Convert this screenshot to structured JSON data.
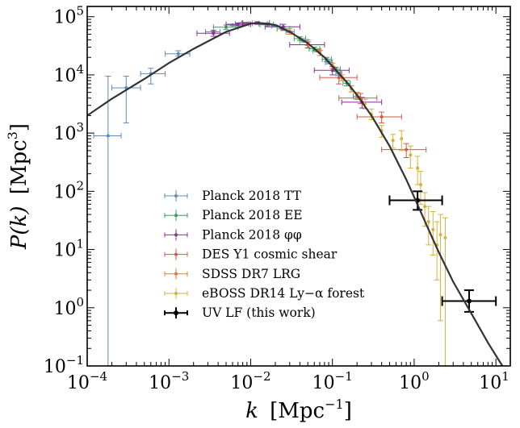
{
  "chart_data": {
    "type": "scatter",
    "title": "",
    "xlabel_main": "k",
    "xlabel_unit": "[Mpc",
    "xlabel_exp": "−1",
    "xlabel_close": "]",
    "ylabel_main": "P(k)",
    "ylabel_unit": "[Mpc",
    "ylabel_exp": "3",
    "ylabel_close": "]",
    "xscale": "log",
    "yscale": "log",
    "xlim": [
      0.0001,
      15
    ],
    "ylim": [
      0.1,
      150000
    ],
    "legend_position": "lower-left",
    "x_ticks": [
      {
        "value": 0.0001,
        "base": "10",
        "exp": "−4"
      },
      {
        "value": 0.001,
        "base": "10",
        "exp": "−3"
      },
      {
        "value": 0.01,
        "base": "10",
        "exp": "−2"
      },
      {
        "value": 0.1,
        "base": "10",
        "exp": "−1"
      },
      {
        "value": 1,
        "base": "10",
        "exp": "0"
      },
      {
        "value": 10,
        "base": "10",
        "exp": "1"
      }
    ],
    "y_ticks": [
      {
        "value": 0.1,
        "base": "10",
        "exp": "−1"
      },
      {
        "value": 1,
        "base": "10",
        "exp": "0"
      },
      {
        "value": 10,
        "base": "10",
        "exp": "1"
      },
      {
        "value": 100,
        "base": "10",
        "exp": "2"
      },
      {
        "value": 1000,
        "base": "10",
        "exp": "3"
      },
      {
        "value": 10000,
        "base": "10",
        "exp": "4"
      },
      {
        "value": 100000,
        "base": "10",
        "exp": "5"
      }
    ],
    "model_curve": {
      "color": "#333333",
      "points": [
        [
          0.0001,
          2000
        ],
        [
          0.0002,
          3900
        ],
        [
          0.0005,
          8500
        ],
        [
          0.001,
          16000
        ],
        [
          0.002,
          28000
        ],
        [
          0.005,
          55000
        ],
        [
          0.01,
          76000
        ],
        [
          0.0125,
          78000
        ],
        [
          0.02,
          72000
        ],
        [
          0.03,
          55000
        ],
        [
          0.05,
          35000
        ],
        [
          0.08,
          20000
        ],
        [
          0.1,
          14000
        ],
        [
          0.15,
          7500
        ],
        [
          0.2,
          4500
        ],
        [
          0.3,
          2000
        ],
        [
          0.5,
          600
        ],
        [
          0.8,
          160
        ],
        [
          1,
          80
        ],
        [
          1.5,
          22
        ],
        [
          2,
          9
        ],
        [
          3,
          2.8
        ],
        [
          5,
          0.8
        ],
        [
          8,
          0.25
        ],
        [
          12,
          0.1
        ]
      ]
    },
    "series": [
      {
        "name": "Planck 2018 TT",
        "color": "#5b8db8",
        "points": [
          {
            "x": 0.00018,
            "y": 900,
            "xlo": 0.00012,
            "xhi": 0.00026,
            "ylo": 0.1,
            "yhi": 9500
          },
          {
            "x": 0.0003,
            "y": 6000,
            "xlo": 0.0002,
            "xhi": 0.00045,
            "ylo": 1500,
            "yhi": 9500
          },
          {
            "x": 0.0006,
            "y": 10500,
            "xlo": 0.00045,
            "xhi": 0.0009,
            "ylo": 7000,
            "yhi": 13000
          },
          {
            "x": 0.0013,
            "y": 23000,
            "xlo": 0.0009,
            "xhi": 0.0018,
            "ylo": 21000,
            "yhi": 26000
          },
          {
            "x": 0.0035,
            "y": 55000,
            "xlo": 0.0028,
            "xhi": 0.0042,
            "ylo": 52000,
            "yhi": 58000
          },
          {
            "x": 0.006,
            "y": 72000,
            "xlo": 0.005,
            "xhi": 0.0072,
            "ylo": 70000,
            "yhi": 74000
          },
          {
            "x": 0.009,
            "y": 77000,
            "xlo": 0.0078,
            "xhi": 0.0105,
            "ylo": 75000,
            "yhi": 79000
          },
          {
            "x": 0.014,
            "y": 76000,
            "xlo": 0.0125,
            "xhi": 0.016,
            "ylo": 74000,
            "yhi": 78000
          },
          {
            "x": 0.02,
            "y": 70000,
            "xlo": 0.018,
            "xhi": 0.023,
            "ylo": 68000,
            "yhi": 72000
          },
          {
            "x": 0.03,
            "y": 55000,
            "xlo": 0.027,
            "xhi": 0.034,
            "ylo": 53000,
            "yhi": 57000
          },
          {
            "x": 0.045,
            "y": 38000,
            "xlo": 0.04,
            "xhi": 0.05,
            "ylo": 36500,
            "yhi": 39500
          },
          {
            "x": 0.065,
            "y": 26000,
            "xlo": 0.058,
            "xhi": 0.072,
            "ylo": 25000,
            "yhi": 27000
          },
          {
            "x": 0.09,
            "y": 16500,
            "xlo": 0.082,
            "xhi": 0.1,
            "ylo": 15500,
            "yhi": 17500
          },
          {
            "x": 0.12,
            "y": 10500,
            "xlo": 0.11,
            "xhi": 0.13,
            "ylo": 9800,
            "yhi": 11200
          }
        ]
      },
      {
        "name": "Planck 2018 EE",
        "color": "#3f9a5a",
        "points": [
          {
            "x": 0.005,
            "y": 66000,
            "xlo": 0.0035,
            "xhi": 0.007,
            "ylo": 60000,
            "yhi": 72000
          },
          {
            "x": 0.008,
            "y": 75000,
            "xlo": 0.0065,
            "xhi": 0.0095,
            "ylo": 70000,
            "yhi": 80000
          },
          {
            "x": 0.016,
            "y": 73000,
            "xlo": 0.013,
            "xhi": 0.019,
            "ylo": 68000,
            "yhi": 78000
          },
          {
            "x": 0.025,
            "y": 62000,
            "xlo": 0.021,
            "xhi": 0.03,
            "ylo": 58000,
            "yhi": 66000
          },
          {
            "x": 0.04,
            "y": 42000,
            "xlo": 0.034,
            "xhi": 0.047,
            "ylo": 39000,
            "yhi": 45000
          },
          {
            "x": 0.06,
            "y": 28000,
            "xlo": 0.052,
            "xhi": 0.07,
            "ylo": 26000,
            "yhi": 30000
          },
          {
            "x": 0.085,
            "y": 18500,
            "xlo": 0.075,
            "xhi": 0.097,
            "ylo": 17000,
            "yhi": 20000
          },
          {
            "x": 0.11,
            "y": 12500,
            "xlo": 0.1,
            "xhi": 0.125,
            "ylo": 11500,
            "yhi": 13500
          },
          {
            "x": 0.15,
            "y": 7200,
            "xlo": 0.135,
            "xhi": 0.165,
            "ylo": 6500,
            "yhi": 8000
          },
          {
            "x": 0.2,
            "y": 4300,
            "xlo": 0.18,
            "xhi": 0.22,
            "ylo": 3800,
            "yhi": 4800
          }
        ]
      },
      {
        "name": "Planck 2018 φφ",
        "color": "#8b2f9a",
        "points": [
          {
            "x": 0.0035,
            "y": 52000,
            "xlo": 0.0022,
            "xhi": 0.0055,
            "ylo": 46000,
            "yhi": 58000
          },
          {
            "x": 0.007,
            "y": 74000,
            "xlo": 0.005,
            "xhi": 0.01,
            "ylo": 70000,
            "yhi": 78000
          },
          {
            "x": 0.012,
            "y": 78000,
            "xlo": 0.008,
            "xhi": 0.017,
            "ylo": 74000,
            "yhi": 82000
          },
          {
            "x": 0.025,
            "y": 67000,
            "xlo": 0.015,
            "xhi": 0.04,
            "ylo": 60000,
            "yhi": 74000
          },
          {
            "x": 0.05,
            "y": 33000,
            "xlo": 0.03,
            "xhi": 0.08,
            "ylo": 29000,
            "yhi": 37000
          },
          {
            "x": 0.1,
            "y": 12000,
            "xlo": 0.06,
            "xhi": 0.16,
            "ylo": 10000,
            "yhi": 14000
          },
          {
            "x": 0.23,
            "y": 3400,
            "xlo": 0.13,
            "xhi": 0.4,
            "ylo": 2700,
            "yhi": 4100
          }
        ]
      },
      {
        "name": "DES Y1 cosmic shear",
        "color": "#d1584a",
        "points": [
          {
            "x": 0.12,
            "y": 9000,
            "xlo": 0.07,
            "xhi": 0.2,
            "ylo": 7000,
            "yhi": 11000
          },
          {
            "x": 0.22,
            "y": 4000,
            "xlo": 0.12,
            "xhi": 0.35,
            "ylo": 3200,
            "yhi": 4800
          },
          {
            "x": 0.4,
            "y": 1900,
            "xlo": 0.2,
            "xhi": 0.7,
            "ylo": 1500,
            "yhi": 2300
          },
          {
            "x": 0.8,
            "y": 520,
            "xlo": 0.4,
            "xhi": 1.4,
            "ylo": 380,
            "yhi": 660
          }
        ]
      },
      {
        "name": "SDSS DR7 LRG",
        "color": "#e8782f",
        "points": [
          {
            "x": 0.03,
            "y": 56000,
            "ylo": 50000,
            "yhi": 62000
          },
          {
            "x": 0.05,
            "y": 36000,
            "ylo": 32000,
            "yhi": 40000
          },
          {
            "x": 0.07,
            "y": 24000,
            "ylo": 21500,
            "yhi": 26500
          },
          {
            "x": 0.1,
            "y": 14500,
            "ylo": 13000,
            "yhi": 16000
          },
          {
            "x": 0.13,
            "y": 9000,
            "ylo": 8000,
            "yhi": 10000
          },
          {
            "x": 0.17,
            "y": 5800,
            "ylo": 5100,
            "yhi": 6500
          },
          {
            "x": 0.2,
            "y": 4400,
            "ylo": 3800,
            "yhi": 5000
          }
        ]
      },
      {
        "name": "eBOSS DR14 Ly−α forest",
        "color": "#d6b03f",
        "points": [
          {
            "x": 0.25,
            "y": 3200,
            "ylo": 2600,
            "yhi": 3800
          },
          {
            "x": 0.3,
            "y": 2100,
            "ylo": 1700,
            "yhi": 2600
          },
          {
            "x": 0.4,
            "y": 1100,
            "ylo": 850,
            "yhi": 1350
          },
          {
            "x": 0.55,
            "y": 750,
            "ylo": 550,
            "yhi": 950
          },
          {
            "x": 0.7,
            "y": 800,
            "ylo": 500,
            "yhi": 1100
          },
          {
            "x": 0.9,
            "y": 420,
            "ylo": 250,
            "yhi": 600
          },
          {
            "x": 1.1,
            "y": 250,
            "ylo": 130,
            "yhi": 400
          },
          {
            "x": 1.2,
            "y": 130,
            "ylo": 60,
            "yhi": 220
          },
          {
            "x": 1.35,
            "y": 55,
            "ylo": 25,
            "yhi": 95
          },
          {
            "x": 1.5,
            "y": 30,
            "ylo": 12,
            "yhi": 55
          },
          {
            "x": 1.7,
            "y": 22,
            "ylo": 8,
            "yhi": 45
          },
          {
            "x": 1.9,
            "y": 12,
            "ylo": 3,
            "yhi": 30
          },
          {
            "x": 2.1,
            "y": 18,
            "ylo": 0.6,
            "yhi": 40
          },
          {
            "x": 2.4,
            "y": 16,
            "ylo": 0.1,
            "yhi": 35
          }
        ]
      },
      {
        "name": "UV LF (this work)",
        "color": "#000000",
        "points": [
          {
            "x": 1.1,
            "y": 70,
            "xlo": 0.5,
            "xhi": 2.2,
            "ylo": 48,
            "yhi": 100
          },
          {
            "x": 4.7,
            "y": 1.3,
            "xlo": 2.2,
            "xhi": 10,
            "ylo": 0.85,
            "yhi": 2.0
          }
        ]
      }
    ]
  }
}
